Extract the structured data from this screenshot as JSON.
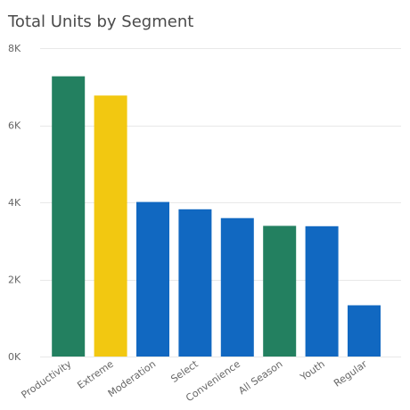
{
  "chart_data": {
    "type": "bar",
    "title": "Total Units by Segment",
    "xlabel": "",
    "ylabel": "",
    "ylim": [
      0,
      8000
    ],
    "yticks": [
      {
        "value": 0,
        "label": "0K"
      },
      {
        "value": 2000,
        "label": "2K"
      },
      {
        "value": 4000,
        "label": "4K"
      },
      {
        "value": 6000,
        "label": "6K"
      },
      {
        "value": 8000,
        "label": "8K"
      }
    ],
    "grid": true,
    "legend": "none",
    "categories": [
      "Productivity",
      "Extreme",
      "Moderation",
      "Select",
      "Convenience",
      "All Season",
      "Youth",
      "Regular"
    ],
    "values": [
      7270,
      6770,
      4010,
      3820,
      3590,
      3390,
      3380,
      1330
    ],
    "bar_colors": [
      "#238060",
      "#F2C811",
      "#1168C1",
      "#1168C1",
      "#1168C1",
      "#238060",
      "#1168C1",
      "#1168C1"
    ]
  }
}
